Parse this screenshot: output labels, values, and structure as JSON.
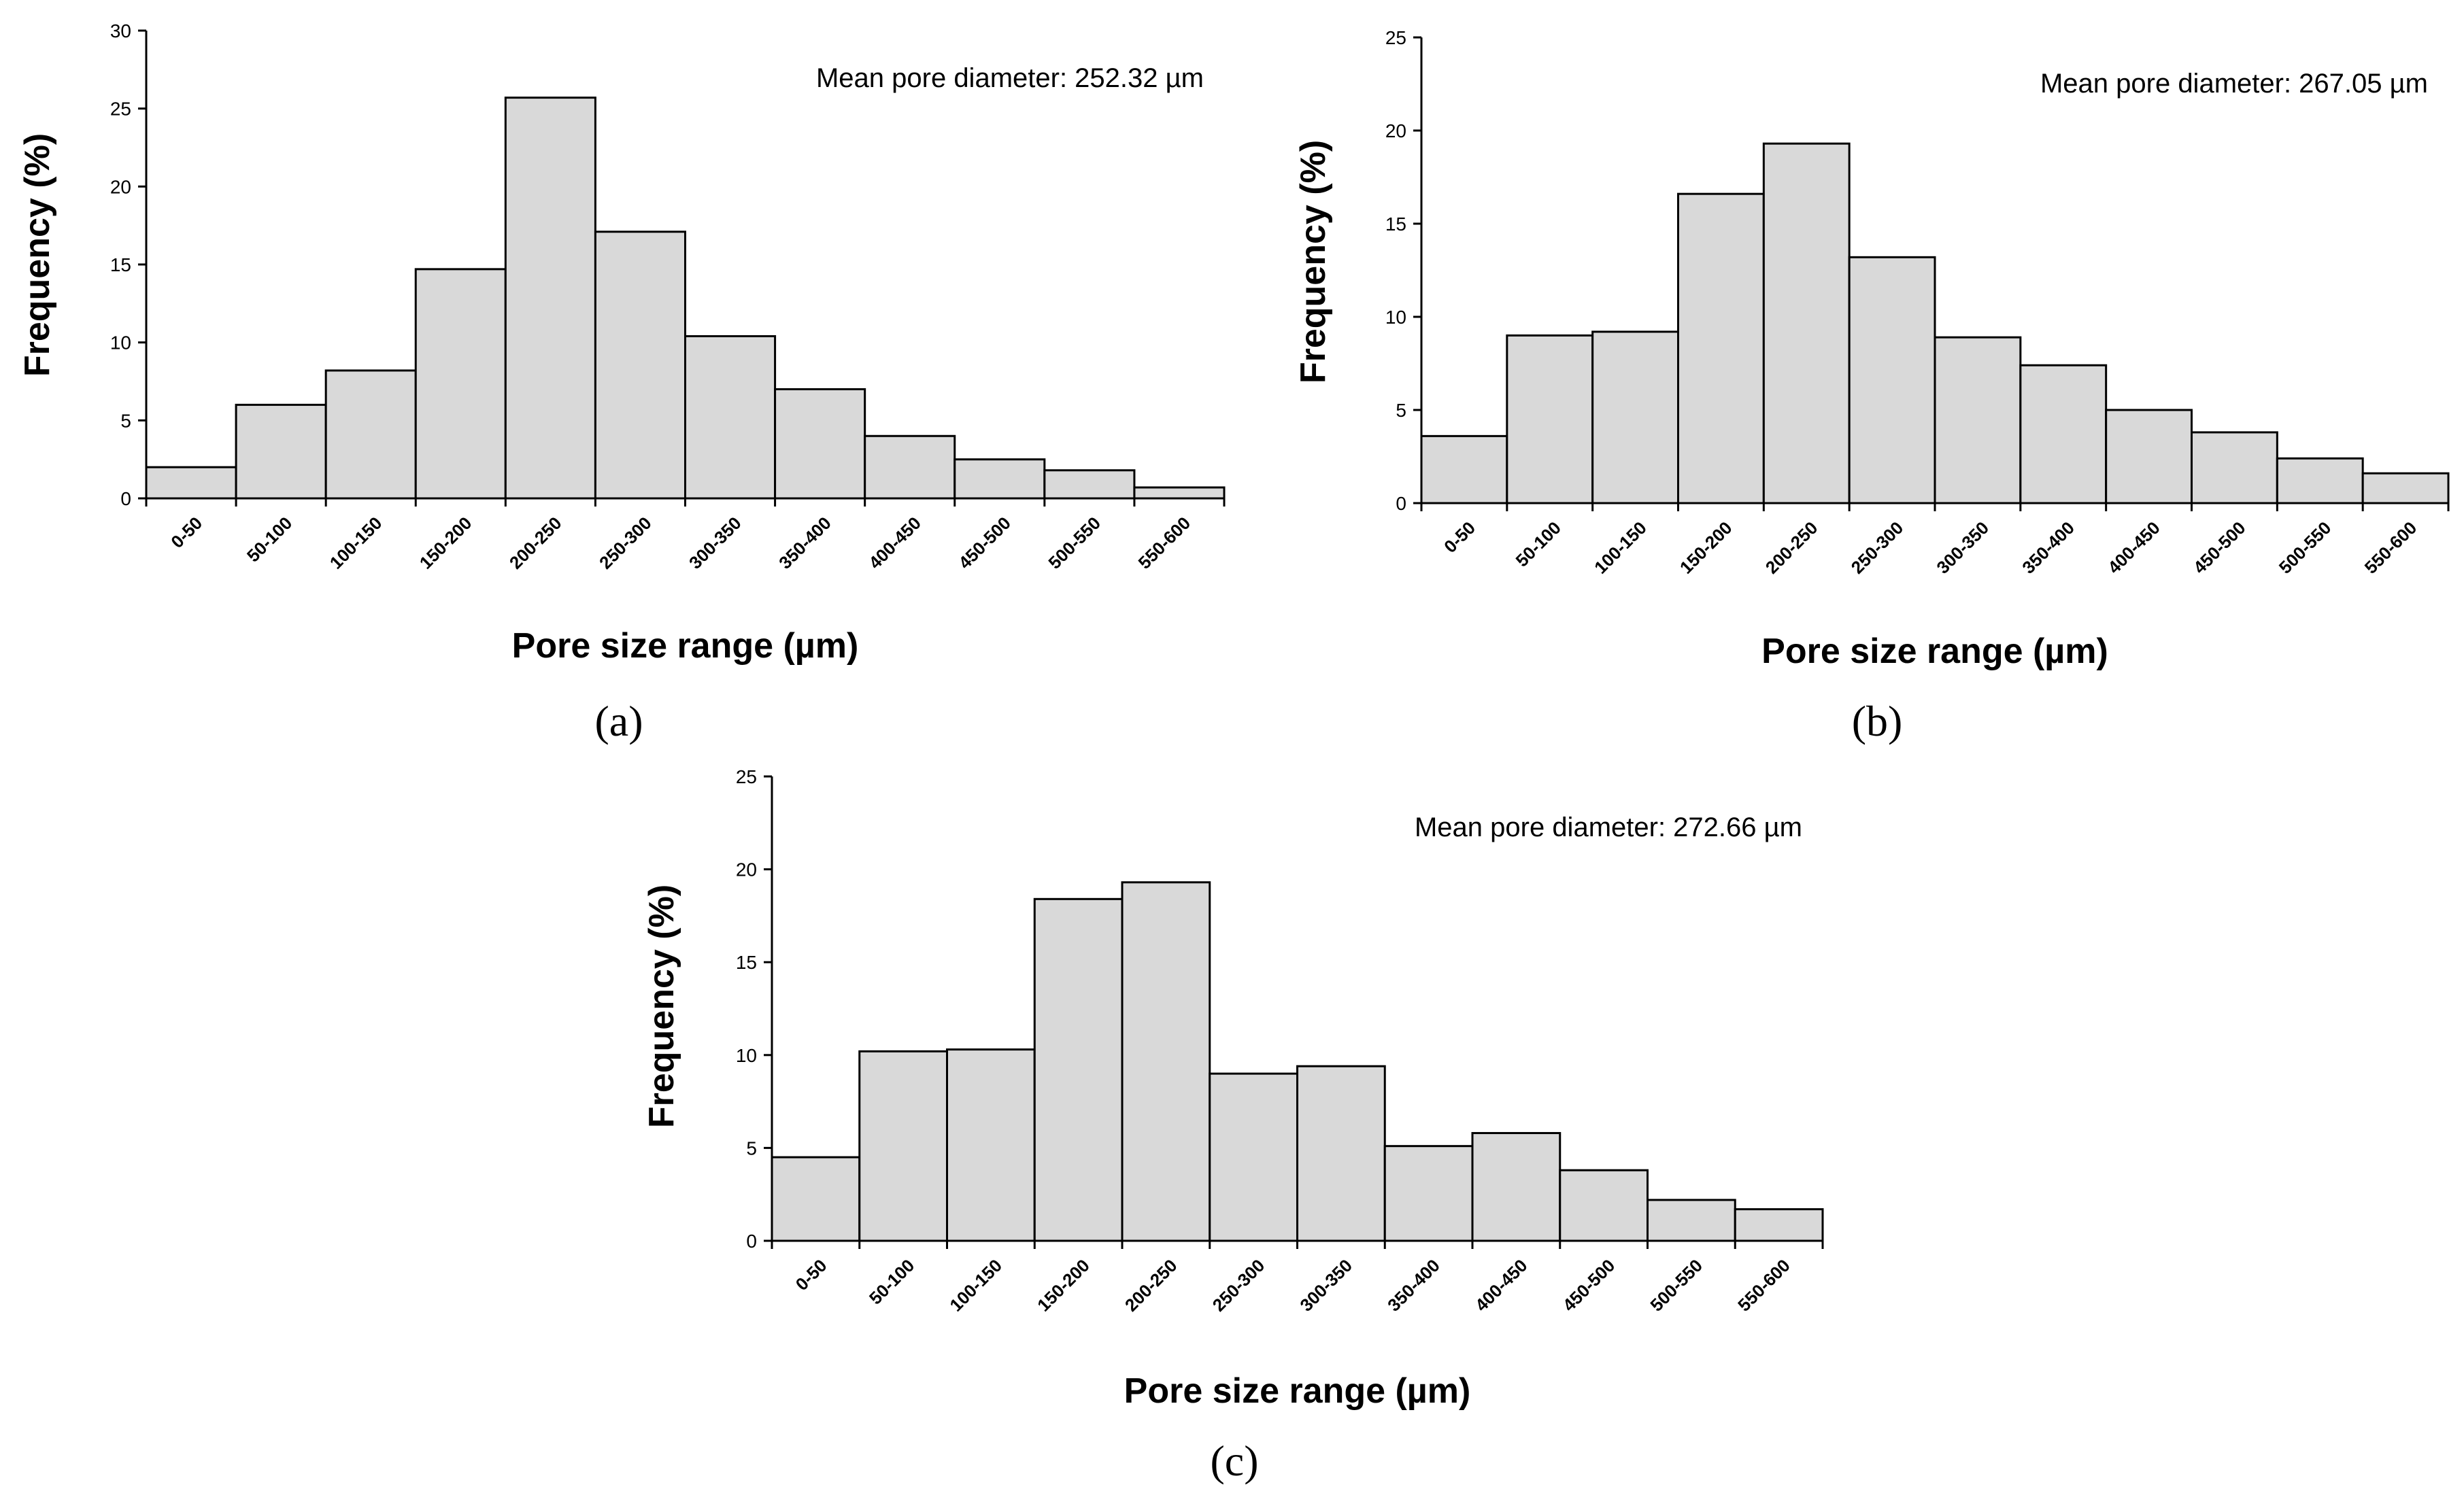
{
  "chart_data": [
    {
      "type": "bar",
      "panel_label": "(a)",
      "annotation": "Mean pore diameter: 252.32 µm",
      "xlabel": "Pore size range (µm)",
      "ylabel": "Frequency (%)",
      "ylim": [
        0,
        30
      ],
      "yticks": [
        0,
        5,
        10,
        15,
        20,
        25,
        30
      ],
      "categories": [
        "0-50",
        "50-100",
        "100-150",
        "150-200",
        "200-250",
        "250-300",
        "300-350",
        "350-400",
        "400-450",
        "450-500",
        "500-550",
        "550-600"
      ],
      "values": [
        2.0,
        6.0,
        8.2,
        14.7,
        25.7,
        17.1,
        10.4,
        7.0,
        4.0,
        2.5,
        1.8,
        0.7
      ]
    },
    {
      "type": "bar",
      "panel_label": "(b)",
      "annotation": "Mean pore diameter: 267.05 µm",
      "xlabel": "Pore size range (µm)",
      "ylabel": "Frequency (%)",
      "ylim": [
        0,
        25
      ],
      "yticks": [
        0,
        5,
        10,
        15,
        20,
        25
      ],
      "categories": [
        "0-50",
        "50-100",
        "100-150",
        "150-200",
        "200-250",
        "250-300",
        "300-350",
        "350-400",
        "400-450",
        "450-500",
        "500-550",
        "550-600"
      ],
      "values": [
        3.6,
        9.0,
        9.2,
        16.6,
        19.3,
        13.2,
        8.9,
        7.4,
        5.0,
        3.8,
        2.4,
        1.6
      ]
    },
    {
      "type": "bar",
      "panel_label": "(c)",
      "annotation": "Mean pore diameter: 272.66 µm",
      "xlabel": "Pore size range (µm)",
      "ylabel": "Frequency (%)",
      "ylim": [
        0,
        25
      ],
      "yticks": [
        0,
        5,
        10,
        15,
        20,
        25
      ],
      "categories": [
        "0-50",
        "50-100",
        "100-150",
        "150-200",
        "200-250",
        "250-300",
        "300-350",
        "350-400",
        "400-450",
        "450-500",
        "500-550",
        "550-600"
      ],
      "values": [
        4.5,
        10.2,
        10.3,
        18.4,
        19.3,
        9.0,
        9.4,
        5.1,
        5.8,
        3.8,
        2.2,
        1.7
      ]
    }
  ]
}
